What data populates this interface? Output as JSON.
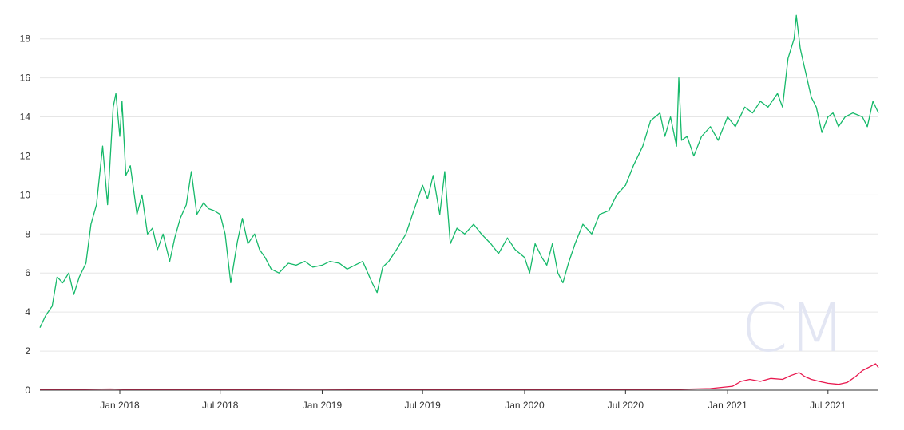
{
  "chart_data": {
    "type": "line",
    "title": "",
    "xlabel": "",
    "ylabel": "",
    "ylim": [
      0,
      19.5
    ],
    "y_ticks": [
      0,
      2,
      4,
      6,
      8,
      10,
      12,
      14,
      16,
      18
    ],
    "x_ticks": [
      {
        "date": "2018-01-01",
        "label": "Jan 2018"
      },
      {
        "date": "2018-07-01",
        "label": "Jul 2018"
      },
      {
        "date": "2019-01-01",
        "label": "Jan 2019"
      },
      {
        "date": "2019-07-01",
        "label": "Jul 2019"
      },
      {
        "date": "2020-01-01",
        "label": "Jan 2020"
      },
      {
        "date": "2020-07-01",
        "label": "Jul 2020"
      },
      {
        "date": "2021-01-01",
        "label": "Jan 2021"
      },
      {
        "date": "2021-07-01",
        "label": "Jul 2021"
      }
    ],
    "xlim": [
      "2017-08-10",
      "2021-09-30"
    ],
    "grid": true,
    "legend": "none",
    "series": [
      {
        "color": "#16b96a",
        "points": [
          [
            "2017-08-10",
            3.2
          ],
          [
            "2017-08-20",
            3.8
          ],
          [
            "2017-09-01",
            4.3
          ],
          [
            "2017-09-10",
            5.8
          ],
          [
            "2017-09-20",
            5.5
          ],
          [
            "2017-10-01",
            6.0
          ],
          [
            "2017-10-10",
            4.9
          ],
          [
            "2017-10-20",
            5.8
          ],
          [
            "2017-11-01",
            6.5
          ],
          [
            "2017-11-10",
            8.5
          ],
          [
            "2017-11-20",
            9.5
          ],
          [
            "2017-12-01",
            12.5
          ],
          [
            "2017-12-10",
            9.5
          ],
          [
            "2017-12-20",
            14.5
          ],
          [
            "2017-12-25",
            15.2
          ],
          [
            "2018-01-01",
            13.0
          ],
          [
            "2018-01-05",
            14.8
          ],
          [
            "2018-01-12",
            11.0
          ],
          [
            "2018-01-20",
            11.5
          ],
          [
            "2018-02-01",
            9.0
          ],
          [
            "2018-02-10",
            10.0
          ],
          [
            "2018-02-20",
            8.0
          ],
          [
            "2018-03-01",
            8.3
          ],
          [
            "2018-03-10",
            7.2
          ],
          [
            "2018-03-20",
            8.0
          ],
          [
            "2018-04-01",
            6.6
          ],
          [
            "2018-04-10",
            7.8
          ],
          [
            "2018-04-20",
            8.8
          ],
          [
            "2018-05-01",
            9.5
          ],
          [
            "2018-05-10",
            11.2
          ],
          [
            "2018-05-20",
            9.0
          ],
          [
            "2018-06-01",
            9.6
          ],
          [
            "2018-06-10",
            9.3
          ],
          [
            "2018-06-20",
            9.2
          ],
          [
            "2018-07-01",
            9.0
          ],
          [
            "2018-07-10",
            8.0
          ],
          [
            "2018-07-20",
            5.5
          ],
          [
            "2018-08-01",
            7.6
          ],
          [
            "2018-08-10",
            8.8
          ],
          [
            "2018-08-20",
            7.5
          ],
          [
            "2018-09-01",
            8.0
          ],
          [
            "2018-09-10",
            7.2
          ],
          [
            "2018-09-20",
            6.8
          ],
          [
            "2018-10-01",
            6.2
          ],
          [
            "2018-10-15",
            6.0
          ],
          [
            "2018-11-01",
            6.5
          ],
          [
            "2018-11-15",
            6.4
          ],
          [
            "2018-12-01",
            6.6
          ],
          [
            "2018-12-15",
            6.3
          ],
          [
            "2019-01-01",
            6.4
          ],
          [
            "2019-01-15",
            6.6
          ],
          [
            "2019-02-01",
            6.5
          ],
          [
            "2019-02-15",
            6.2
          ],
          [
            "2019-03-01",
            6.4
          ],
          [
            "2019-03-15",
            6.6
          ],
          [
            "2019-04-01",
            5.5
          ],
          [
            "2019-04-10",
            5.0
          ],
          [
            "2019-04-20",
            6.3
          ],
          [
            "2019-05-01",
            6.6
          ],
          [
            "2019-05-15",
            7.2
          ],
          [
            "2019-06-01",
            8.0
          ],
          [
            "2019-06-15",
            9.2
          ],
          [
            "2019-07-01",
            10.5
          ],
          [
            "2019-07-10",
            9.8
          ],
          [
            "2019-07-20",
            11.0
          ],
          [
            "2019-08-01",
            9.0
          ],
          [
            "2019-08-10",
            11.2
          ],
          [
            "2019-08-20",
            7.5
          ],
          [
            "2019-09-01",
            8.3
          ],
          [
            "2019-09-15",
            8.0
          ],
          [
            "2019-10-01",
            8.5
          ],
          [
            "2019-10-15",
            8.0
          ],
          [
            "2019-11-01",
            7.5
          ],
          [
            "2019-11-15",
            7.0
          ],
          [
            "2019-12-01",
            7.8
          ],
          [
            "2019-12-15",
            7.2
          ],
          [
            "2020-01-01",
            6.8
          ],
          [
            "2020-01-10",
            6.0
          ],
          [
            "2020-01-20",
            7.5
          ],
          [
            "2020-02-01",
            6.8
          ],
          [
            "2020-02-10",
            6.4
          ],
          [
            "2020-02-20",
            7.5
          ],
          [
            "2020-03-01",
            6.0
          ],
          [
            "2020-03-10",
            5.5
          ],
          [
            "2020-03-20",
            6.5
          ],
          [
            "2020-04-01",
            7.5
          ],
          [
            "2020-04-15",
            8.5
          ],
          [
            "2020-05-01",
            8.0
          ],
          [
            "2020-05-15",
            9.0
          ],
          [
            "2020-06-01",
            9.2
          ],
          [
            "2020-06-15",
            10.0
          ],
          [
            "2020-07-01",
            10.5
          ],
          [
            "2020-07-15",
            11.5
          ],
          [
            "2020-08-01",
            12.5
          ],
          [
            "2020-08-15",
            13.8
          ],
          [
            "2020-09-01",
            14.2
          ],
          [
            "2020-09-10",
            13.0
          ],
          [
            "2020-09-20",
            14.0
          ],
          [
            "2020-10-01",
            12.5
          ],
          [
            "2020-10-05",
            16.0
          ],
          [
            "2020-10-10",
            12.8
          ],
          [
            "2020-10-20",
            13.0
          ],
          [
            "2020-11-01",
            12.0
          ],
          [
            "2020-11-15",
            13.0
          ],
          [
            "2020-12-01",
            13.5
          ],
          [
            "2020-12-15",
            12.8
          ],
          [
            "2021-01-01",
            14.0
          ],
          [
            "2021-01-15",
            13.5
          ],
          [
            "2021-02-01",
            14.5
          ],
          [
            "2021-02-15",
            14.2
          ],
          [
            "2021-03-01",
            14.8
          ],
          [
            "2021-03-15",
            14.5
          ],
          [
            "2021-04-01",
            15.2
          ],
          [
            "2021-04-10",
            14.5
          ],
          [
            "2021-04-20",
            17.0
          ],
          [
            "2021-05-01",
            18.0
          ],
          [
            "2021-05-05",
            19.2
          ],
          [
            "2021-05-12",
            17.5
          ],
          [
            "2021-05-20",
            16.5
          ],
          [
            "2021-06-01",
            15.0
          ],
          [
            "2021-06-10",
            14.5
          ],
          [
            "2021-06-20",
            13.2
          ],
          [
            "2021-07-01",
            14.0
          ],
          [
            "2021-07-10",
            14.2
          ],
          [
            "2021-07-20",
            13.5
          ],
          [
            "2021-08-01",
            14.0
          ],
          [
            "2021-08-15",
            14.2
          ],
          [
            "2021-09-01",
            14.0
          ],
          [
            "2021-09-10",
            13.5
          ],
          [
            "2021-09-20",
            14.8
          ],
          [
            "2021-09-30",
            14.2
          ]
        ]
      },
      {
        "color": "#e8194f",
        "points": [
          [
            "2017-08-10",
            0.02
          ],
          [
            "2017-12-15",
            0.06
          ],
          [
            "2018-01-15",
            0.04
          ],
          [
            "2018-07-01",
            0.02
          ],
          [
            "2019-01-01",
            0.01
          ],
          [
            "2019-07-01",
            0.03
          ],
          [
            "2020-01-01",
            0.02
          ],
          [
            "2020-07-01",
            0.05
          ],
          [
            "2020-10-01",
            0.04
          ],
          [
            "2020-12-01",
            0.08
          ],
          [
            "2021-01-10",
            0.2
          ],
          [
            "2021-01-25",
            0.45
          ],
          [
            "2021-02-10",
            0.55
          ],
          [
            "2021-03-01",
            0.45
          ],
          [
            "2021-03-20",
            0.6
          ],
          [
            "2021-04-10",
            0.55
          ],
          [
            "2021-04-25",
            0.75
          ],
          [
            "2021-05-10",
            0.9
          ],
          [
            "2021-05-20",
            0.7
          ],
          [
            "2021-06-01",
            0.55
          ],
          [
            "2021-06-15",
            0.45
          ],
          [
            "2021-07-01",
            0.35
          ],
          [
            "2021-07-20",
            0.3
          ],
          [
            "2021-08-05",
            0.4
          ],
          [
            "2021-08-20",
            0.7
          ],
          [
            "2021-09-01",
            1.0
          ],
          [
            "2021-09-15",
            1.2
          ],
          [
            "2021-09-25",
            1.35
          ],
          [
            "2021-09-30",
            1.15
          ]
        ]
      }
    ]
  },
  "watermark": {
    "text": "CM"
  }
}
